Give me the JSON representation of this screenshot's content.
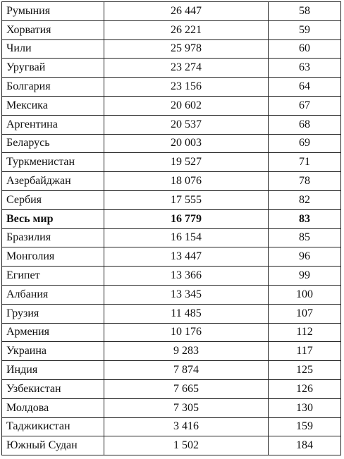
{
  "table": {
    "rows": [
      {
        "country": "Румыния",
        "value": "26 447",
        "rank": "58",
        "bold": false
      },
      {
        "country": "Хорватия",
        "value": "26 221",
        "rank": "59",
        "bold": false
      },
      {
        "country": "Чили",
        "value": "25 978",
        "rank": "60",
        "bold": false
      },
      {
        "country": "Уругвай",
        "value": "23 274",
        "rank": "63",
        "bold": false
      },
      {
        "country": "Болгария",
        "value": "23 156",
        "rank": "64",
        "bold": false
      },
      {
        "country": "Мексика",
        "value": "20 602",
        "rank": "67",
        "bold": false
      },
      {
        "country": "Аргентина",
        "value": "20 537",
        "rank": "68",
        "bold": false
      },
      {
        "country": "Беларусь",
        "value": "20 003",
        "rank": "69",
        "bold": false
      },
      {
        "country": "Туркменистан",
        "value": "19 527",
        "rank": "71",
        "bold": false
      },
      {
        "country": "Азербайджан",
        "value": "18 076",
        "rank": "78",
        "bold": false
      },
      {
        "country": "Сербия",
        "value": "17 555",
        "rank": "82",
        "bold": false
      },
      {
        "country": "Весь мир",
        "value": "16 779",
        "rank": "83",
        "bold": true
      },
      {
        "country": "Бразилия",
        "value": "16 154",
        "rank": "85",
        "bold": false
      },
      {
        "country": "Монголия",
        "value": "13 447",
        "rank": "96",
        "bold": false
      },
      {
        "country": "Египет",
        "value": "13 366",
        "rank": "99",
        "bold": false
      },
      {
        "country": "Албания",
        "value": "13 345",
        "rank": "100",
        "bold": false
      },
      {
        "country": "Грузия",
        "value": "11 485",
        "rank": "107",
        "bold": false
      },
      {
        "country": "Армения",
        "value": "10 176",
        "rank": "112",
        "bold": false
      },
      {
        "country": "Украина",
        "value": "9 283",
        "rank": "117",
        "bold": false
      },
      {
        "country": "Индия",
        "value": "7 874",
        "rank": "125",
        "bold": false
      },
      {
        "country": "Узбекистан",
        "value": "7 665",
        "rank": "126",
        "bold": false
      },
      {
        "country": "Молдова",
        "value": "7 305",
        "rank": "130",
        "bold": false
      },
      {
        "country": "Таджикистан",
        "value": "3 416",
        "rank": "159",
        "bold": false
      },
      {
        "country": "Южный Судан",
        "value": "1 502",
        "rank": "184",
        "bold": false
      }
    ]
  }
}
